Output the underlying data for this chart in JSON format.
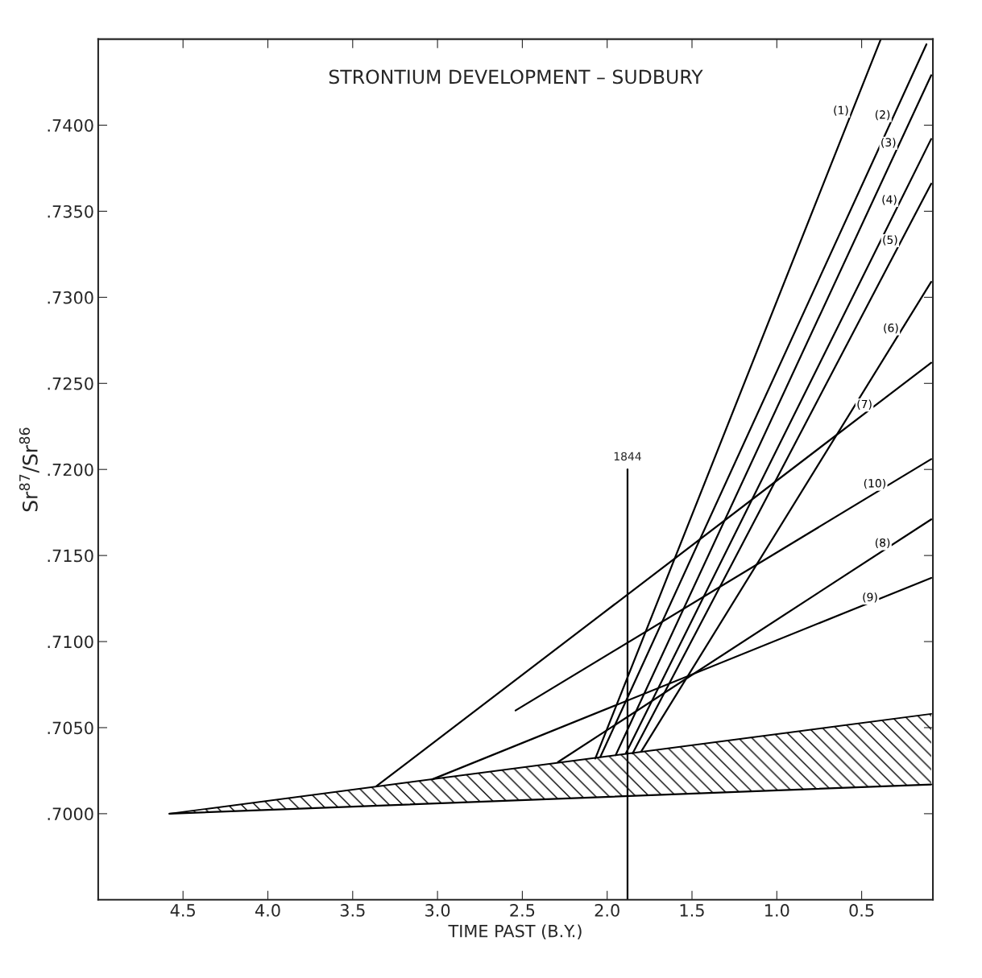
{
  "chart_data": {
    "type": "line",
    "title": "STRONTIUM DEVELOPMENT – SUDBURY",
    "xlabel": "TIME PAST (B.Y.)",
    "ylabel": "Sr$^{87}$/Sr$^{86}$",
    "xlim": [
      5.0,
      0.08
    ],
    "ylim": [
      0.695,
      0.745
    ],
    "xticks": [
      {
        "value": 4.5,
        "label": "4.5"
      },
      {
        "value": 4.0,
        "label": "4.0"
      },
      {
        "value": 3.5,
        "label": "3.5"
      },
      {
        "value": 3.0,
        "label": "3.0"
      },
      {
        "value": 2.5,
        "label": "2.5"
      },
      {
        "value": 2.0,
        "label": "2.0"
      },
      {
        "value": 1.5,
        "label": "1.5"
      },
      {
        "value": 1.0,
        "label": "1.0"
      },
      {
        "value": 0.5,
        "label": "0.5"
      }
    ],
    "yticks": [
      {
        "value": 0.7,
        "label": ".7000"
      },
      {
        "value": 0.705,
        "label": ".7050"
      },
      {
        "value": 0.71,
        "label": ".7100"
      },
      {
        "value": 0.715,
        "label": ".7150"
      },
      {
        "value": 0.72,
        "label": ".7200"
      },
      {
        "value": 0.725,
        "label": ".7250"
      },
      {
        "value": 0.73,
        "label": ".7300"
      },
      {
        "value": 0.735,
        "label": ".7350"
      },
      {
        "value": 0.74,
        "label": ".7400"
      }
    ],
    "grid": false,
    "legend": false,
    "marker": "none",
    "line_style": "solid",
    "series": [
      {
        "color": "#000000",
        "x": [
          4.58,
          0.09
        ],
        "values": [
          0.7,
          0.7017
        ]
      },
      {
        "type": "area",
        "color": "#000000",
        "x": [
          4.58,
          0.09
        ],
        "values": [
          0.7,
          0.7058
        ]
      },
      {
        "name": "(1)",
        "color": "#000000",
        "x": [
          2.07,
          0.387
        ],
        "values": [
          0.7032,
          0.745
        ]
      },
      {
        "name": "(2)",
        "color": "#000000",
        "x": [
          2.04,
          0.118
        ],
        "values": [
          0.7033,
          0.7447
        ]
      },
      {
        "name": "(3)",
        "color": "#000000",
        "x": [
          1.95,
          0.09
        ],
        "values": [
          0.7034,
          0.7429
        ]
      },
      {
        "name": "(4)",
        "color": "#000000",
        "x": [
          1.89,
          0.09
        ],
        "values": [
          0.7035,
          0.7392
        ]
      },
      {
        "name": "(5)",
        "color": "#000000",
        "x": [
          1.85,
          0.09
        ],
        "values": [
          0.7035,
          0.7366
        ]
      },
      {
        "name": "(6)",
        "color": "#000000",
        "x": [
          1.8,
          0.09
        ],
        "values": [
          0.7036,
          0.7309
        ]
      },
      {
        "name": "(7)",
        "color": "#000000",
        "x": [
          3.36,
          0.09
        ],
        "values": [
          0.7016,
          0.7262
        ]
      },
      {
        "name": "(10)",
        "color": "#000000",
        "x": [
          2.54,
          0.09
        ],
        "values": [
          0.706,
          0.7206
        ]
      },
      {
        "name": "(8)",
        "color": "#000000",
        "x": [
          2.29,
          0.09
        ],
        "values": [
          0.703,
          0.7171
        ]
      },
      {
        "name": "(9)",
        "color": "#000000",
        "x": [
          3.03,
          0.09
        ],
        "values": [
          0.702,
          0.7137
        ]
      },
      {
        "color": "#000000",
        "x": [
          1.88,
          1.88
        ],
        "values": [
          0.695,
          0.72
        ]
      }
    ],
    "annotations": [
      {
        "text": "1844",
        "x": 1.88,
        "y": 0.72
      }
    ]
  }
}
